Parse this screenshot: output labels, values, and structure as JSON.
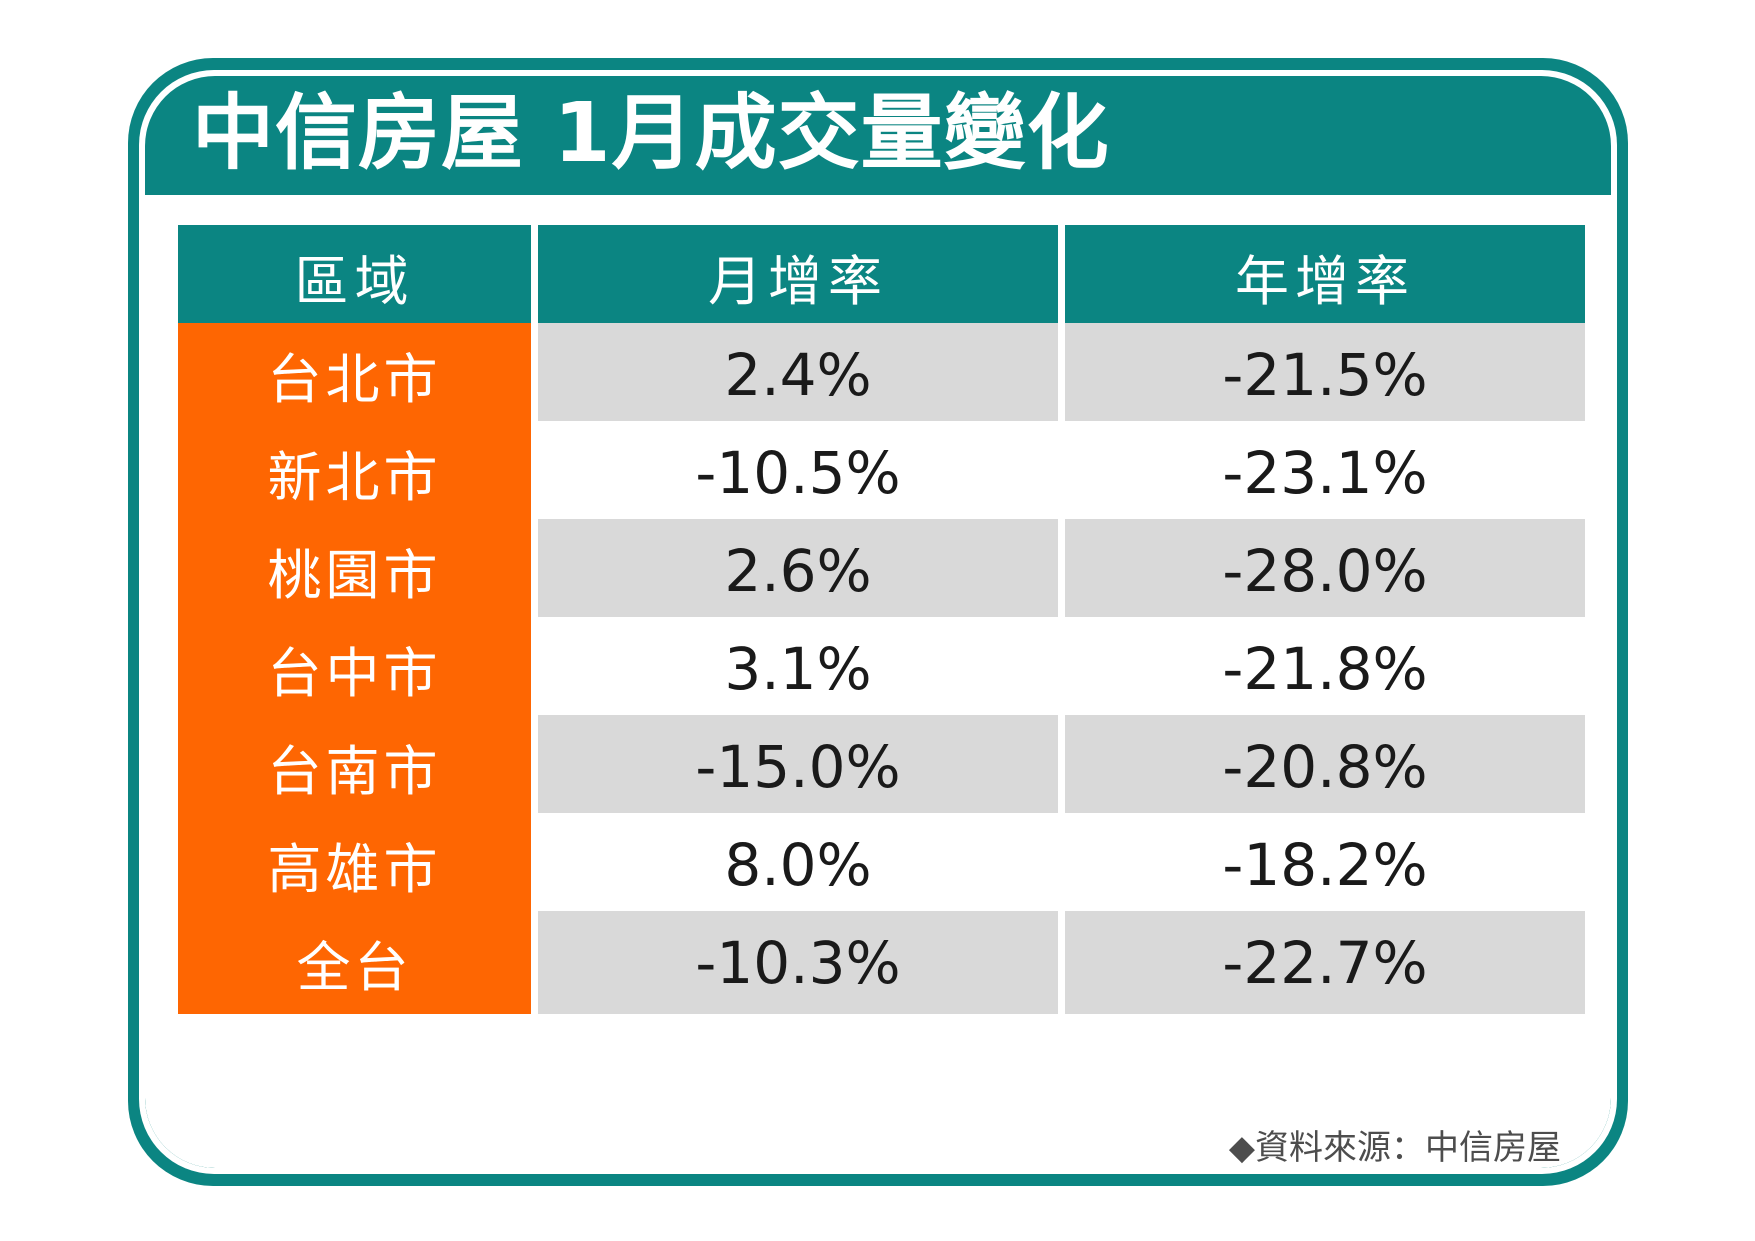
{
  "title": "中信房屋 1月成交量變化",
  "colors": {
    "teal": "#0b8582",
    "orange": "#fe6602",
    "shaded_row": "#d9d9d9"
  },
  "chart_data": {
    "type": "table",
    "title": "中信房屋 1月成交量變化",
    "columns": [
      "區域",
      "月增率",
      "年增率"
    ],
    "rows": [
      {
        "region": "台北市",
        "mom": "2.4%",
        "yoy": "-21.5%"
      },
      {
        "region": "新北市",
        "mom": "-10.5%",
        "yoy": "-23.1%"
      },
      {
        "region": "桃園市",
        "mom": "2.6%",
        "yoy": "-28.0%"
      },
      {
        "region": "台中市",
        "mom": "3.1%",
        "yoy": "-21.8%"
      },
      {
        "region": "台南市",
        "mom": "-15.0%",
        "yoy": "-20.8%"
      },
      {
        "region": "高雄市",
        "mom": "8.0%",
        "yoy": "-18.2%"
      },
      {
        "region": "全台",
        "mom": "-10.3%",
        "yoy": "-22.7%"
      }
    ]
  },
  "source": "◆資料來源：中信房屋"
}
